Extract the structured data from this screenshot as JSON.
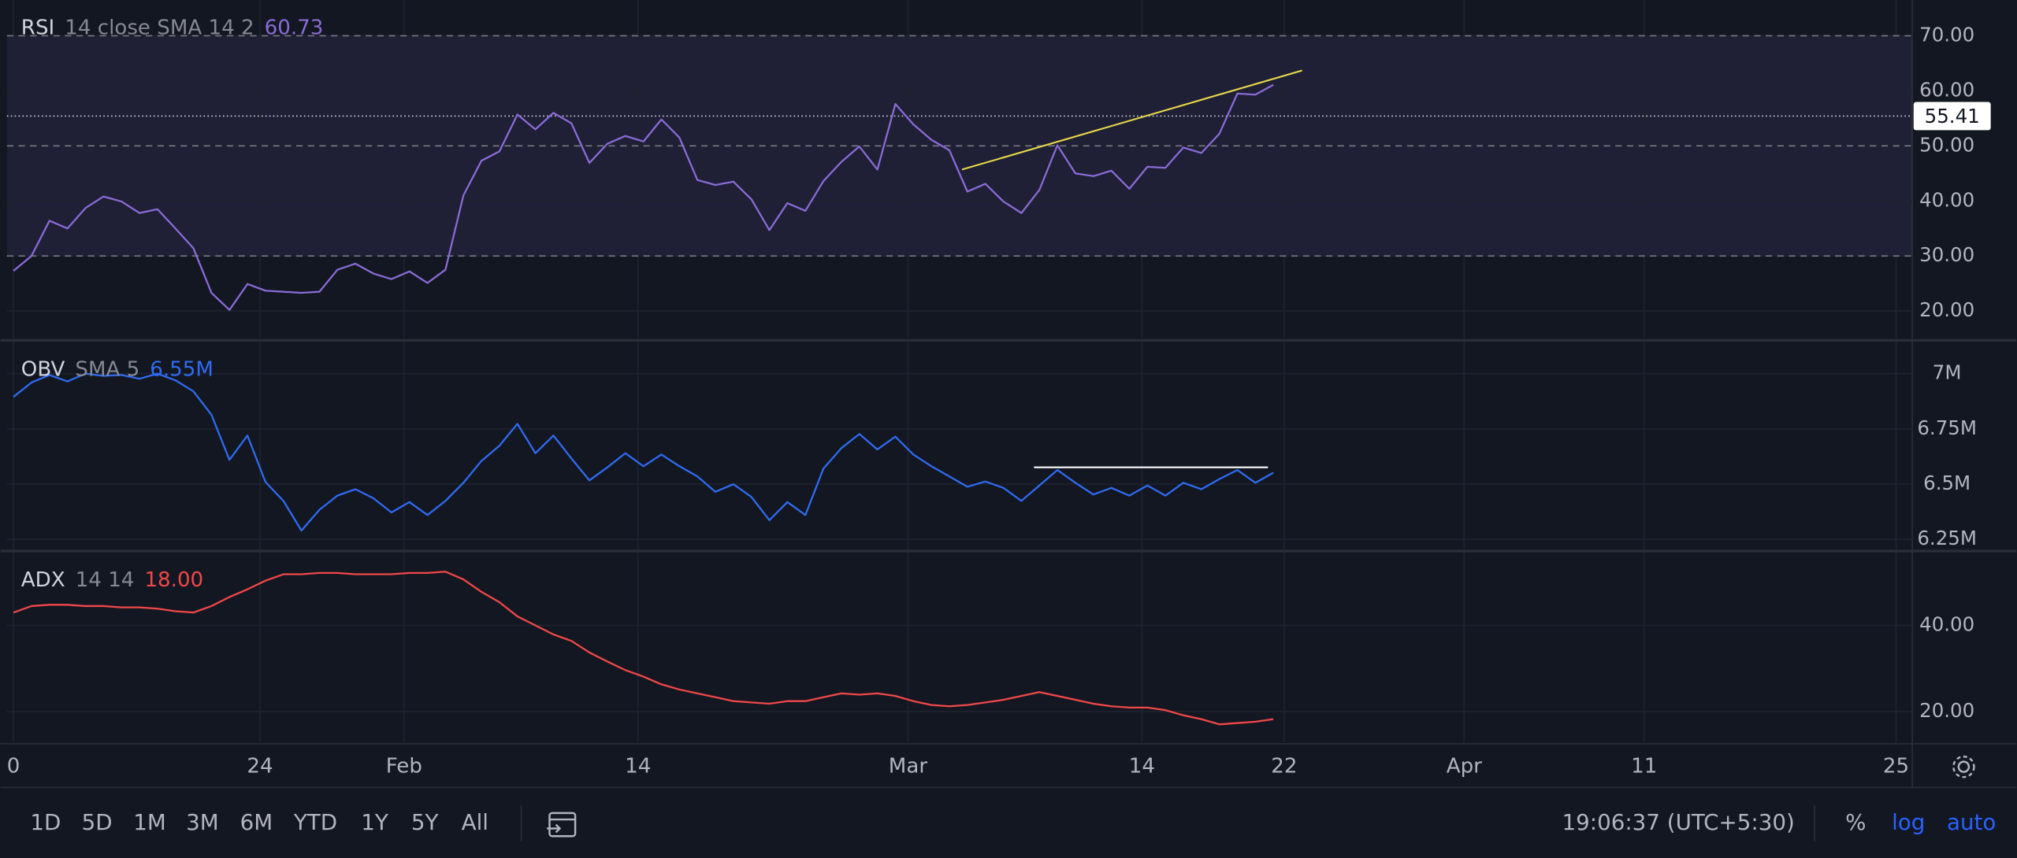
{
  "chart_data": [
    {
      "type": "line",
      "title": "RSI",
      "params": "14 close SMA 14 2",
      "last_value_label": "60.73",
      "x": [
        0,
        1,
        2,
        3,
        4,
        5,
        6,
        7,
        8,
        9,
        10,
        11,
        12,
        13,
        14,
        15,
        16,
        17,
        18,
        19,
        20,
        21,
        22,
        23,
        24,
        25,
        26,
        27,
        28,
        29,
        30,
        31,
        32,
        33,
        34,
        35,
        36,
        37,
        38,
        39,
        40,
        41,
        42,
        43,
        44,
        45,
        46,
        47,
        48,
        49,
        50,
        51,
        52,
        53,
        54,
        55,
        56,
        57,
        58,
        59,
        60,
        61,
        62,
        63,
        64,
        65,
        66,
        67,
        68,
        69,
        70
      ],
      "values": [
        27.3,
        30,
        36.4,
        35,
        38.7,
        40.8,
        39.9,
        37.8,
        38.5,
        35,
        31.4,
        23.3,
        20.2,
        24.9,
        23.7,
        23.5,
        23.3,
        23.5,
        27.5,
        28.6,
        26.8,
        25.8,
        27.2,
        25.1,
        27.5,
        41,
        47.3,
        49,
        55.7,
        53,
        56,
        54.1,
        46.9,
        50.4,
        51.8,
        50.8,
        54.8,
        51.5,
        43.8,
        42.9,
        43.5,
        40.3,
        34.7,
        39.6,
        38.2,
        43.6,
        47.1,
        49.9,
        45.7,
        57.6,
        53.9,
        51.1,
        49.2,
        41.7,
        43.1,
        39.9,
        37.8,
        42,
        50.1,
        45,
        44.5,
        45.5,
        42.2,
        46.2,
        46,
        49.7,
        48.7,
        52.2,
        59.5,
        59.3,
        61.1
      ],
      "color": "#8a6bd6",
      "band": [
        30,
        70
      ],
      "band_color": "#7e57c2",
      "hlines": [
        70,
        50,
        30
      ],
      "price_line": 55.41,
      "trendline": {
        "x": [
          52.7,
          71.6
        ],
        "y": [
          45.7,
          63.7
        ],
        "color": "#e6d74a"
      },
      "xlim": [
        -0.36,
        105.5
      ],
      "ylim": [
        14.9,
        76.5
      ],
      "yticks": [
        {
          "value": 20,
          "label": "20.00"
        },
        {
          "value": 30,
          "label": "30.00"
        },
        {
          "value": 40,
          "label": "40.00"
        },
        {
          "value": 50,
          "label": "50.00"
        },
        {
          "value": 60,
          "label": "60.00"
        },
        {
          "value": 70,
          "label": "70.00"
        }
      ]
    },
    {
      "type": "line",
      "title": "OBV",
      "params": "SMA 5",
      "last_value_label": "6.55M",
      "x": [
        0,
        1,
        2,
        3,
        4,
        5,
        6,
        7,
        8,
        9,
        10,
        11,
        12,
        13,
        14,
        15,
        16,
        17,
        18,
        19,
        20,
        21,
        22,
        23,
        24,
        25,
        26,
        27,
        28,
        29,
        30,
        31,
        32,
        33,
        34,
        35,
        36,
        37,
        38,
        39,
        40,
        41,
        42,
        43,
        44,
        45,
        46,
        47,
        48,
        49,
        50,
        51,
        52,
        53,
        54,
        55,
        56,
        57,
        58,
        59,
        60,
        61,
        62,
        63,
        64,
        65,
        66,
        67,
        68,
        69,
        70
      ],
      "values": [
        6.895,
        6.96,
        6.994,
        6.965,
        7.0,
        6.99,
        6.994,
        6.977,
        7.0,
        6.97,
        6.92,
        6.814,
        6.61,
        6.72,
        6.51,
        6.424,
        6.29,
        6.384,
        6.448,
        6.477,
        6.436,
        6.372,
        6.419,
        6.36,
        6.424,
        6.506,
        6.605,
        6.674,
        6.773,
        6.64,
        6.72,
        6.616,
        6.517,
        6.576,
        6.64,
        6.581,
        6.634,
        6.581,
        6.535,
        6.465,
        6.5,
        6.442,
        6.337,
        6.419,
        6.36,
        6.57,
        6.663,
        6.727,
        6.657,
        6.715,
        6.634,
        6.581,
        6.535,
        6.488,
        6.512,
        6.483,
        6.424,
        6.494,
        6.564,
        6.506,
        6.453,
        6.483,
        6.448,
        6.494,
        6.448,
        6.506,
        6.477,
        6.523,
        6.564,
        6.506,
        6.552
      ],
      "color": "#2f6bf0",
      "hline_annotation": {
        "x": [
          56.7,
          69.7
        ],
        "y": 6.576,
        "color": "#ffffff"
      },
      "xlim": [
        -0.36,
        105.5
      ],
      "ylim": [
        6.203,
        7.145
      ],
      "yticks": [
        {
          "value": 6.25,
          "label": "6.25M"
        },
        {
          "value": 6.5,
          "label": "6.5M"
        },
        {
          "value": 6.75,
          "label": "6.75M"
        },
        {
          "value": 7,
          "label": "7M"
        }
      ]
    },
    {
      "type": "line",
      "title": "ADX",
      "params": "14 14",
      "last_value_label": "18.00",
      "x": [
        0,
        1,
        2,
        3,
        4,
        5,
        6,
        7,
        8,
        9,
        10,
        11,
        12,
        13,
        14,
        15,
        16,
        17,
        18,
        19,
        20,
        21,
        22,
        23,
        24,
        25,
        26,
        27,
        28,
        29,
        30,
        31,
        32,
        33,
        34,
        35,
        36,
        37,
        38,
        39,
        40,
        41,
        42,
        43,
        44,
        45,
        46,
        47,
        48,
        49,
        50,
        51,
        52,
        53,
        54,
        55,
        56,
        57,
        58,
        59,
        60,
        61,
        62,
        63,
        64,
        65,
        66,
        67,
        68,
        69,
        70
      ],
      "values": [
        43,
        44.5,
        44.8,
        44.8,
        44.5,
        44.5,
        44.2,
        44.2,
        43.9,
        43.3,
        43,
        44.5,
        46.6,
        48.4,
        50.4,
        51.9,
        51.9,
        52.2,
        52.2,
        51.9,
        51.9,
        51.9,
        52.2,
        52.2,
        52.5,
        50.7,
        47.8,
        45.4,
        42.1,
        40,
        37.9,
        36.4,
        33.7,
        31.6,
        29.6,
        28.1,
        26.3,
        25.1,
        24.2,
        23.3,
        22.4,
        22.1,
        21.8,
        22.4,
        22.4,
        23.3,
        24.2,
        23.9,
        24.2,
        23.6,
        22.4,
        21.5,
        21.2,
        21.5,
        22.1,
        22.7,
        23.6,
        24.5,
        23.6,
        22.7,
        21.8,
        21.2,
        20.9,
        20.9,
        20.3,
        19.1,
        18.2,
        17,
        17.3,
        17.6,
        18.2
      ],
      "color": "#f04848",
      "xlim": [
        -0.36,
        105.5
      ],
      "ylim": [
        12.8,
        57.0
      ],
      "yticks": [
        {
          "value": 20,
          "label": "20.00"
        },
        {
          "value": 40,
          "label": "40.00"
        }
      ],
      "xticks": [
        0,
        {
          "value": 13.7,
          "label": "24"
        },
        {
          "value": 21.7,
          "label": "Feb"
        },
        {
          "value": 34.7,
          "label": "14"
        },
        {
          "value": 49.7,
          "label": "Mar"
        },
        {
          "value": 62.7,
          "label": "14"
        },
        {
          "value": 70.6,
          "label": "22"
        },
        {
          "value": 80.6,
          "label": "Apr"
        },
        {
          "value": 90.6,
          "label": "11"
        },
        {
          "value": 104.6,
          "label": "25"
        }
      ]
    }
  ],
  "toolbar": {
    "ranges": [
      "1D",
      "5D",
      "1M",
      "3M",
      "6M",
      "YTD",
      "1Y",
      "5Y",
      "All"
    ],
    "time": "19:06:37 (UTC+5:30)",
    "percent": "%",
    "log": "log",
    "auto": "auto"
  }
}
